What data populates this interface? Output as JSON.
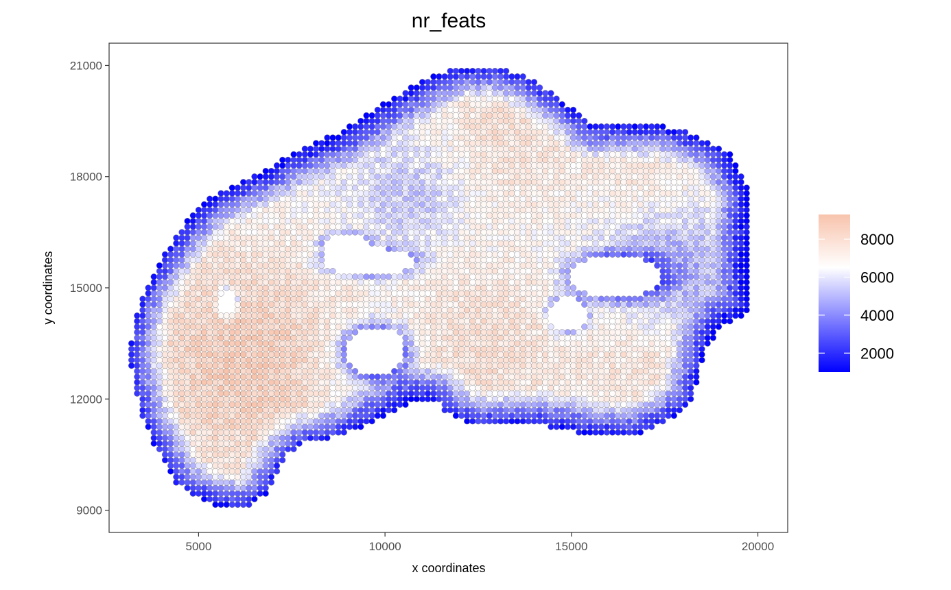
{
  "chart_data": {
    "type": "scatter",
    "title": "nr_feats",
    "xlabel": "x coordinates",
    "ylabel": "y coordinates",
    "xlim": [
      2600,
      20800
    ],
    "ylim": [
      8400,
      21600
    ],
    "x_ticks": [
      5000,
      10000,
      15000,
      20000
    ],
    "x_tick_labels": [
      "5000",
      "10000",
      "15000",
      "20000"
    ],
    "y_ticks": [
      9000,
      12000,
      15000,
      18000,
      21000
    ],
    "y_tick_labels": [
      "9000",
      "12000",
      "15000",
      "18000",
      "21000"
    ],
    "grid": false,
    "spot_spacing": 150,
    "color_scale": {
      "low": "#0000ff",
      "mid": "#ffffff",
      "high": "#f8c3ac",
      "min": 1000,
      "mid_value": 6500,
      "max": 9300
    },
    "legend": {
      "position": "right",
      "ticks": [
        2000,
        4000,
        6000,
        8000
      ],
      "tick_labels": [
        "2000",
        "4000",
        "6000",
        "8000"
      ]
    },
    "boundary": [
      [
        3200,
        13600
      ],
      [
        3400,
        14600
      ],
      [
        3800,
        15400
      ],
      [
        4400,
        16400
      ],
      [
        5000,
        17200
      ],
      [
        5600,
        17600
      ],
      [
        6800,
        18200
      ],
      [
        7600,
        18700
      ],
      [
        8800,
        19200
      ],
      [
        10000,
        20000
      ],
      [
        11000,
        20600
      ],
      [
        12000,
        21000
      ],
      [
        13000,
        21000
      ],
      [
        14000,
        20600
      ],
      [
        14800,
        20000
      ],
      [
        15600,
        19400
      ],
      [
        17400,
        19400
      ],
      [
        18400,
        19100
      ],
      [
        19200,
        18700
      ],
      [
        19800,
        17600
      ],
      [
        19800,
        14400
      ],
      [
        19000,
        13900
      ],
      [
        18600,
        13300
      ],
      [
        18400,
        12600
      ],
      [
        18200,
        11900
      ],
      [
        17600,
        11400
      ],
      [
        16800,
        11000
      ],
      [
        15400,
        11000
      ],
      [
        14800,
        11200
      ],
      [
        14000,
        11300
      ],
      [
        12400,
        11300
      ],
      [
        11600,
        11700
      ],
      [
        11400,
        12000
      ],
      [
        10800,
        12000
      ],
      [
        10400,
        11700
      ],
      [
        9800,
        11400
      ],
      [
        8800,
        11000
      ],
      [
        7800,
        10800
      ],
      [
        7400,
        10500
      ],
      [
        6800,
        9400
      ],
      [
        6200,
        9000
      ],
      [
        5200,
        9200
      ],
      [
        4400,
        9700
      ],
      [
        3800,
        10800
      ],
      [
        3400,
        11800
      ],
      [
        3200,
        12800
      ]
    ],
    "holes": [
      {
        "cx": 9600,
        "cy": 15700,
        "rx": 1200,
        "ry": 380
      },
      {
        "cx": 8950,
        "cy": 16100,
        "rx": 650,
        "ry": 350
      },
      {
        "cx": 9750,
        "cy": 13300,
        "rx": 800,
        "ry": 650
      },
      {
        "cx": 16200,
        "cy": 15300,
        "rx": 1200,
        "ry": 600
      },
      {
        "cx": 14900,
        "cy": 14300,
        "rx": 500,
        "ry": 500
      },
      {
        "cx": 5800,
        "cy": 14600,
        "rx": 250,
        "ry": 350
      }
    ],
    "high_regions": [
      {
        "cx": 6200,
        "cy": 13000,
        "r": 2300,
        "w": 1.0
      },
      {
        "cx": 12500,
        "cy": 13400,
        "r": 1800,
        "w": 0.6
      },
      {
        "cx": 13200,
        "cy": 19200,
        "r": 1500,
        "w": 0.6
      },
      {
        "cx": 17200,
        "cy": 17700,
        "r": 1300,
        "w": 0.55
      },
      {
        "cx": 17000,
        "cy": 13200,
        "r": 1400,
        "w": 0.55
      }
    ],
    "low_regions": [
      {
        "cx": 17500,
        "cy": 15600,
        "r": 1300,
        "w": 0.85
      },
      {
        "cx": 9700,
        "cy": 13000,
        "r": 900,
        "w": 0.75
      },
      {
        "cx": 10800,
        "cy": 17500,
        "r": 1100,
        "w": 0.45
      }
    ]
  }
}
